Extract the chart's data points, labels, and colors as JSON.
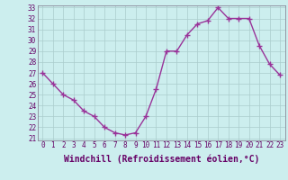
{
  "x": [
    0,
    1,
    2,
    3,
    4,
    5,
    6,
    7,
    8,
    9,
    10,
    11,
    12,
    13,
    14,
    15,
    16,
    17,
    18,
    19,
    20,
    21,
    22,
    23
  ],
  "y": [
    27,
    26,
    25,
    24.5,
    23.5,
    23,
    22,
    21.5,
    21.3,
    21.5,
    23,
    25.5,
    29,
    29,
    30.5,
    31.5,
    31.8,
    33,
    32,
    32,
    32,
    29.5,
    27.8,
    26.8
  ],
  "line_color": "#993399",
  "marker": "+",
  "marker_size": 4,
  "bg_color": "#cceeee",
  "grid_color": "#aacccc",
  "xlabel": "Windchill (Refroidissement éolien,°C)",
  "ylim": [
    21,
    33
  ],
  "xlim": [
    -0.5,
    23.5
  ],
  "yticks": [
    21,
    22,
    23,
    24,
    25,
    26,
    27,
    28,
    29,
    30,
    31,
    32,
    33
  ],
  "xticks": [
    0,
    1,
    2,
    3,
    4,
    5,
    6,
    7,
    8,
    9,
    10,
    11,
    12,
    13,
    14,
    15,
    16,
    17,
    18,
    19,
    20,
    21,
    22,
    23
  ],
  "tick_fontsize": 5.5,
  "xlabel_fontsize": 7.0,
  "line_width": 1.0,
  "spine_color": "#888899"
}
